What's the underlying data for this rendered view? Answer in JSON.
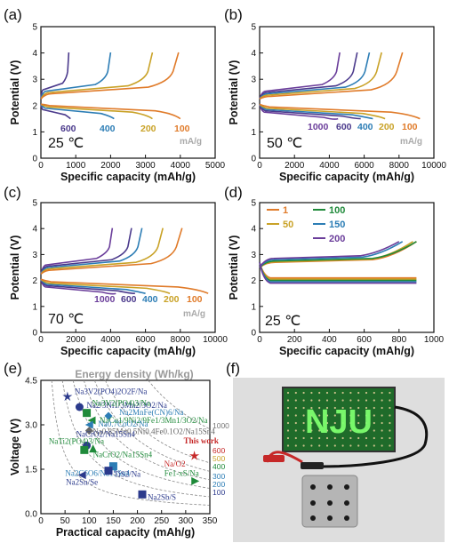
{
  "figure": {
    "panel_labels": [
      "(a)",
      "(b)",
      "(c)",
      "(d)",
      "(e)",
      "(f)"
    ],
    "unit_label": "mA/g"
  },
  "colors": {
    "r600": "#4b3a8c",
    "r400": "#2c7db5",
    "r200": "#c9a227",
    "r100": "#e07b2a",
    "r1000": "#6a3d9a",
    "d1": "#e07b2a",
    "d50": "#c9a227",
    "d100": "#1f8a3a",
    "d150": "#2c7db5",
    "d200": "#6a3d9a"
  },
  "chart_data": [
    {
      "id": "a",
      "type": "line",
      "temperature": "25 ℃",
      "xlabel": "Specific capacity (mAh/g)",
      "ylabel": "Potential (V)",
      "xlim": [
        0,
        5000
      ],
      "ylim": [
        0,
        5
      ],
      "xticks": [
        "0",
        "1000",
        "2000",
        "3000",
        "4000",
        "5000"
      ],
      "yticks": [
        "0",
        "1",
        "2",
        "3",
        "4",
        "5"
      ],
      "series": [
        {
          "name": "600",
          "color_key": "r600",
          "charge_cap": 800,
          "discharge_cap": 850,
          "charge_plateau": 2.6,
          "discharge_plateau": 1.75
        },
        {
          "name": "400",
          "color_key": "r400",
          "charge_cap": 2000,
          "discharge_cap": 2100,
          "charge_plateau": 2.55,
          "discharge_plateau": 1.8
        },
        {
          "name": "200",
          "color_key": "r200",
          "charge_cap": 3200,
          "discharge_cap": 3200,
          "charge_plateau": 2.5,
          "discharge_plateau": 1.85
        },
        {
          "name": "100",
          "color_key": "r100",
          "charge_cap": 3950,
          "discharge_cap": 4000,
          "charge_plateau": 2.45,
          "discharge_plateau": 1.9
        }
      ]
    },
    {
      "id": "b",
      "type": "line",
      "temperature": "50 ℃",
      "xlabel": "Specific capacity (mAh/g)",
      "ylabel": "Potential (V)",
      "xlim": [
        0,
        10000
      ],
      "ylim": [
        0,
        5
      ],
      "xticks": [
        "0",
        "2000",
        "4000",
        "6000",
        "8000",
        "10000"
      ],
      "yticks": [
        "0",
        "1",
        "2",
        "3",
        "4",
        "5"
      ],
      "series": [
        {
          "name": "1000",
          "color_key": "r1000",
          "charge_cap": 4600,
          "discharge_cap": 4500,
          "charge_plateau": 2.55,
          "discharge_plateau": 1.65
        },
        {
          "name": "600",
          "color_key": "r600",
          "charge_cap": 5600,
          "discharge_cap": 5800,
          "charge_plateau": 2.5,
          "discharge_plateau": 1.7
        },
        {
          "name": "400",
          "color_key": "r400",
          "charge_cap": 6300,
          "discharge_cap": 6500,
          "charge_plateau": 2.45,
          "discharge_plateau": 1.75
        },
        {
          "name": "200",
          "color_key": "r200",
          "charge_cap": 7000,
          "discharge_cap": 7200,
          "charge_plateau": 2.4,
          "discharge_plateau": 1.8
        },
        {
          "name": "100",
          "color_key": "r100",
          "charge_cap": 8200,
          "discharge_cap": 9200,
          "charge_plateau": 2.35,
          "discharge_plateau": 1.85
        }
      ]
    },
    {
      "id": "c",
      "type": "line",
      "temperature": "70 ℃",
      "xlabel": "Specific capacity (mAh/g)",
      "ylabel": "Potential (V)",
      "xlim": [
        0,
        10000
      ],
      "ylim": [
        0,
        5
      ],
      "xticks": [
        "0",
        "2000",
        "4000",
        "6000",
        "8000",
        "10000"
      ],
      "yticks": [
        "0",
        "1",
        "2",
        "3",
        "4",
        "5"
      ],
      "series": [
        {
          "name": "1000",
          "color_key": "r1000",
          "charge_cap": 4100,
          "discharge_cap": 4300,
          "charge_plateau": 2.6,
          "discharge_plateau": 1.65
        },
        {
          "name": "600",
          "color_key": "r600",
          "charge_cap": 5200,
          "discharge_cap": 5400,
          "charge_plateau": 2.55,
          "discharge_plateau": 1.7
        },
        {
          "name": "400",
          "color_key": "r400",
          "charge_cap": 5800,
          "discharge_cap": 6000,
          "charge_plateau": 2.5,
          "discharge_plateau": 1.75
        },
        {
          "name": "200",
          "color_key": "r200",
          "charge_cap": 7000,
          "discharge_cap": 7400,
          "charge_plateau": 2.45,
          "discharge_plateau": 1.8
        },
        {
          "name": "100",
          "color_key": "r100",
          "charge_cap": 8100,
          "discharge_cap": 9600,
          "charge_plateau": 2.4,
          "discharge_plateau": 1.85
        }
      ]
    },
    {
      "id": "d",
      "type": "line",
      "temperature": "25 ℃",
      "xlabel": "Specific capacity (mAh/g)",
      "ylabel": "Potential (V)",
      "xlim": [
        0,
        1000
      ],
      "ylim": [
        0,
        5
      ],
      "xticks": [
        "0",
        "200",
        "400",
        "600",
        "800",
        "1000"
      ],
      "yticks": [
        "0",
        "1",
        "2",
        "3",
        "4",
        "5"
      ],
      "legend": [
        "1",
        "50",
        "100",
        "150",
        "200"
      ],
      "series": [
        {
          "name": "1",
          "color_key": "d1",
          "charge_cap": 900,
          "discharge_cap": 900,
          "charge_plateau": 2.7,
          "discharge_plateau": 2.1
        },
        {
          "name": "50",
          "color_key": "d50",
          "charge_cap": 880,
          "discharge_cap": 900,
          "charge_plateau": 2.72,
          "discharge_plateau": 2.05
        },
        {
          "name": "100",
          "color_key": "d100",
          "charge_cap": 900,
          "discharge_cap": 900,
          "charge_plateau": 2.75,
          "discharge_plateau": 2.0
        },
        {
          "name": "150",
          "color_key": "d150",
          "charge_cap": 820,
          "discharge_cap": 900,
          "charge_plateau": 2.8,
          "discharge_plateau": 1.95
        },
        {
          "name": "200",
          "color_key": "d200",
          "charge_cap": 800,
          "discharge_cap": 900,
          "charge_plateau": 2.85,
          "discharge_plateau": 1.9
        }
      ]
    },
    {
      "id": "e",
      "type": "scatter",
      "title": "Energy density (Wh/kg)",
      "xlabel": "Practical capacity (mAh/g)",
      "ylabel": "Voltage (V)",
      "xlim": [
        0,
        350
      ],
      "ylim": [
        0,
        4.5
      ],
      "xticks": [
        "0",
        "50",
        "100",
        "150",
        "200",
        "250",
        "300",
        "350"
      ],
      "yticks": [
        "0.0",
        "1.5",
        "3.0",
        "4.5"
      ],
      "energy_levels": [
        "100",
        "200",
        "300",
        "400",
        "500",
        "600",
        "1000"
      ],
      "points": [
        {
          "label": "Na3V2(PO4)2O2F/Na",
          "x": 55,
          "y": 3.95,
          "color": "#2b3a8c",
          "marker": "star"
        },
        {
          "label": "Na2/3Ni1/3Mn2/3O2/Na",
          "x": 80,
          "y": 3.6,
          "color": "#2b3a8c",
          "marker": "circle"
        },
        {
          "label": "Na3V2(PO4)3/Na",
          "x": 95,
          "y": 3.4,
          "color": "#1f8a3a",
          "marker": "square"
        },
        {
          "label": "Na2MnFe(CN)6/Na",
          "x": 140,
          "y": 3.3,
          "color": "#2c7db5",
          "marker": "diamond"
        },
        {
          "label": "NaCu1/9Ni2/9Fe1/3Mn1/3O2/Na",
          "x": 105,
          "y": 3.15,
          "color": "#1f8a3a",
          "marker": "triangle-left"
        },
        {
          "label": "Na0.7CoO2/Na",
          "x": 100,
          "y": 3.0,
          "color": "#2c7db5",
          "marker": "triangle-left"
        },
        {
          "label": "Na0.85Mn0.5Ni0.4Fe0.1O2/Na15Sn4",
          "x": 100,
          "y": 2.8,
          "color": "#666666",
          "marker": "diamond"
        },
        {
          "label": "NaCrO2/Na15Sn4",
          "x": 95,
          "y": 2.3,
          "color": "#2b3a8c",
          "marker": "circle"
        },
        {
          "label": "NaCrO2/Na15Sn4",
          "x": 108,
          "y": 2.2,
          "color": "#1f8a3a",
          "marker": "triangle"
        },
        {
          "label": "NaTi2(PO4)3/Na",
          "x": 90,
          "y": 2.15,
          "color": "#1f8a3a",
          "marker": "square"
        },
        {
          "label": "Na2C6O6/Na15Sn4",
          "x": 150,
          "y": 1.6,
          "color": "#2c7db5",
          "marker": "square"
        },
        {
          "label": "TiS2/Na",
          "x": 140,
          "y": 1.45,
          "color": "#2b3a8c",
          "marker": "square"
        },
        {
          "label": "Na2Sn/Se",
          "x": 85,
          "y": 1.3,
          "color": "#2b3a8c",
          "marker": "triangle-left"
        },
        {
          "label": "Na2Sb/S",
          "x": 210,
          "y": 0.65,
          "color": "#2b3a8c",
          "marker": "square"
        },
        {
          "label": "Fe1-xS/Na",
          "x": 320,
          "y": 1.1,
          "color": "#1f8a3a",
          "marker": "triangle-right"
        },
        {
          "label": "Na/O2",
          "x": 318,
          "y": 1.95,
          "color": "#c62828",
          "marker": "star",
          "note": "This work"
        }
      ],
      "this_work_label": "This work"
    }
  ],
  "photo": {
    "display_text": "NJU"
  }
}
